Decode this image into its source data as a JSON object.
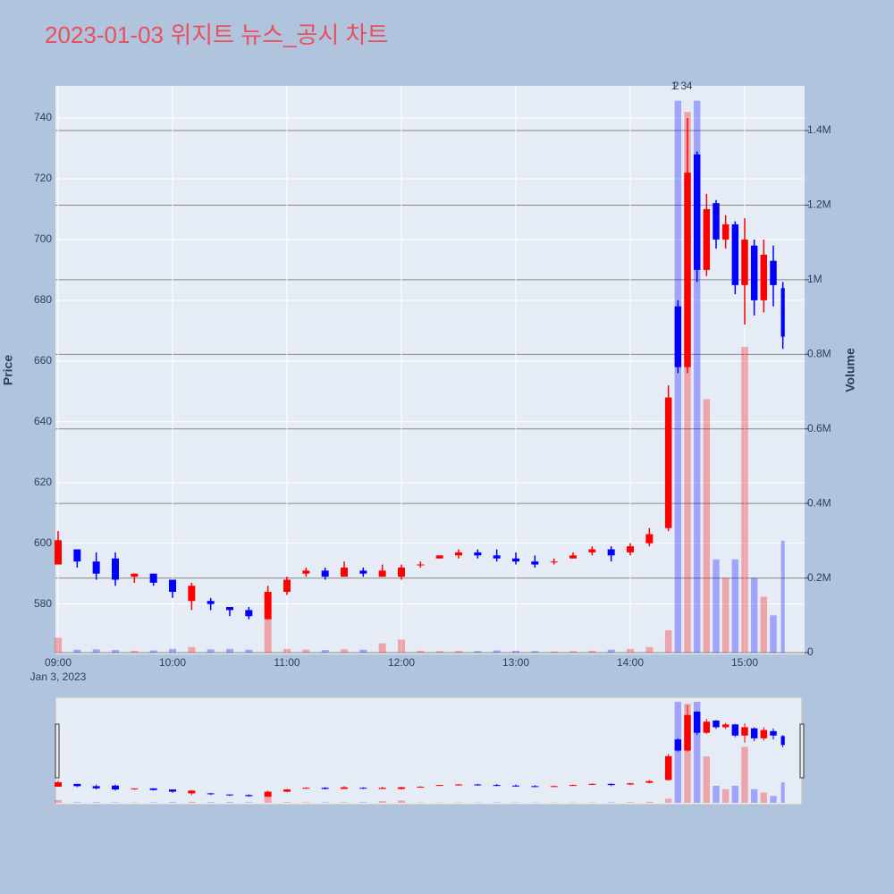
{
  "chart_data": {
    "type": "candlestick",
    "title": "2023-01-03 위지트 뉴스_공시 차트",
    "x": [
      "09:00",
      "09:10",
      "09:20",
      "09:30",
      "09:40",
      "09:50",
      "10:00",
      "10:10",
      "10:20",
      "10:30",
      "10:40",
      "10:50",
      "11:00",
      "11:10",
      "11:20",
      "11:30",
      "11:40",
      "11:50",
      "12:00",
      "12:10",
      "12:20",
      "12:30",
      "12:40",
      "12:50",
      "13:00",
      "13:10",
      "13:20",
      "13:30",
      "13:40",
      "13:50",
      "14:00",
      "14:10",
      "14:20",
      "14:25",
      "14:30",
      "14:35",
      "14:40",
      "14:45",
      "14:50",
      "14:55",
      "15:00",
      "15:05",
      "15:10",
      "15:15",
      "15:20"
    ],
    "open": [
      593,
      598,
      594,
      595,
      589,
      590,
      588,
      581,
      581,
      579,
      578,
      575,
      584,
      590,
      591,
      589,
      591,
      589,
      589,
      593,
      595,
      596,
      597,
      596,
      595,
      594,
      594,
      595,
      597,
      598,
      597,
      600,
      605,
      678,
      658,
      728,
      690,
      712,
      700,
      705,
      685,
      698,
      680,
      693,
      684
    ],
    "high": [
      604,
      598,
      597,
      597,
      590,
      590,
      588,
      587,
      582,
      579,
      579,
      586,
      589,
      592,
      592,
      594,
      592,
      593,
      593,
      594,
      596,
      598,
      598,
      598,
      597,
      596,
      595,
      597,
      599,
      599,
      600,
      605,
      652,
      680,
      740,
      729,
      715,
      713,
      708,
      706,
      707,
      700,
      700,
      698,
      686
    ],
    "low": [
      593,
      592,
      588,
      586,
      587,
      586,
      582,
      578,
      578,
      576,
      575,
      575,
      583,
      589,
      588,
      589,
      589,
      589,
      588,
      592,
      595,
      595,
      595,
      594,
      593,
      592,
      593,
      595,
      596,
      594,
      596,
      599,
      604,
      656,
      656,
      686,
      688,
      697,
      697,
      682,
      672,
      675,
      676,
      678,
      664
    ],
    "close": [
      601,
      594,
      590,
      588,
      590,
      587,
      584,
      586,
      580,
      578,
      576,
      584,
      588,
      591,
      589,
      592,
      590,
      591,
      592,
      593,
      596,
      597,
      596,
      595,
      594,
      593,
      594,
      596,
      598,
      596,
      599,
      603,
      648,
      658,
      722,
      690,
      710,
      700,
      705,
      685,
      700,
      680,
      695,
      685,
      668
    ],
    "volume": [
      40000,
      8000,
      9000,
      7000,
      5000,
      6000,
      10000,
      15000,
      9000,
      10000,
      8000,
      90000,
      10000,
      8000,
      7000,
      9000,
      8000,
      25000,
      35000,
      5000,
      4000,
      5000,
      4000,
      6000,
      5000,
      4000,
      3000,
      4000,
      5000,
      8000,
      10000,
      15000,
      60000,
      1480000,
      1450000,
      1480000,
      680000,
      250000,
      200000,
      250000,
      820000,
      200000,
      150000,
      100000,
      300000
    ],
    "xlim": [
      "09:00",
      "15:30"
    ],
    "xticks": [
      "09:00",
      "10:00",
      "11:00",
      "12:00",
      "13:00",
      "14:00",
      "15:00"
    ],
    "date_label": "Jan 3, 2023",
    "ylim": [
      564,
      750.6
    ],
    "yticks": [
      580,
      600,
      620,
      640,
      660,
      680,
      700,
      720,
      740
    ],
    "y2lim": [
      0,
      1520000
    ],
    "y2ticks": [
      0,
      {
        "value": 200000,
        "label": "0.2M"
      },
      {
        "value": 400000,
        "label": "0.4M"
      },
      {
        "value": 600000,
        "label": "0.6M"
      },
      {
        "value": 800000,
        "label": "0.8M"
      },
      {
        "value": 1000000,
        "label": "1M"
      },
      {
        "value": 1200000,
        "label": "1.2M"
      },
      {
        "value": 1400000,
        "label": "1.4M"
      }
    ],
    "yaxis_title": "Price",
    "y2axis_title": "Volume",
    "increasing_color": "#ff0000",
    "decreasing_color": "#0000ff",
    "annotations": [
      {
        "x": "14:23",
        "text": "1"
      },
      {
        "x": "14:24",
        "text": "2"
      },
      {
        "x": "14:28",
        "text": "3"
      },
      {
        "x": "14:31",
        "text": "4"
      }
    ]
  }
}
